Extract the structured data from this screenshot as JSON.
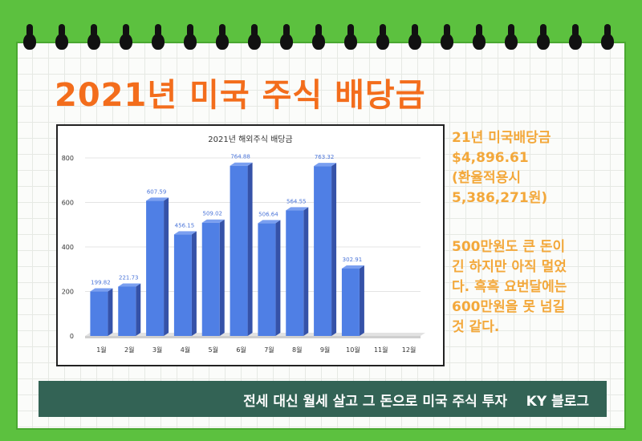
{
  "title": "2021년 미국 주식 배당금",
  "summary_lines": [
    "21년 미국배당금",
    "$4,896.61",
    "(환율적용시",
    "5,386,271원)"
  ],
  "comment_lines": [
    "500만원도 큰 돈이",
    "긴 하지만 아직 멀었",
    "다. 흑흑 요번달에는",
    "600만원을 못 넘길",
    "것 같다."
  ],
  "banner": "전세 대신 월세 살고 그 돈으로 미국 주식 투자    KY 블로그",
  "colors": {
    "background": "#5cc13f",
    "title": "#f36d1c",
    "side_text": "#f3a83b",
    "banner": "#336355",
    "bar": "#4f7fe5"
  },
  "chart_data": {
    "type": "bar",
    "title": "2021년 해외주식 배당금",
    "categories": [
      "1월",
      "2월",
      "3월",
      "4월",
      "5월",
      "6월",
      "7월",
      "8월",
      "9월",
      "10월",
      "11월",
      "12월"
    ],
    "values": [
      199.82,
      221.73,
      607.59,
      456.15,
      509.02,
      764.88,
      506.64,
      564.55,
      763.32,
      302.91,
      null,
      null
    ],
    "data_labels": [
      "199.82",
      "221.73",
      "607.59",
      "456.15",
      "509.02",
      "764.88",
      "506.64",
      "564.55",
      "763.32",
      "302.91",
      "",
      ""
    ],
    "y_ticks": [
      0,
      200,
      400,
      600,
      800
    ],
    "ylim": [
      0,
      800
    ],
    "style": "3d-bar",
    "grid": true
  }
}
